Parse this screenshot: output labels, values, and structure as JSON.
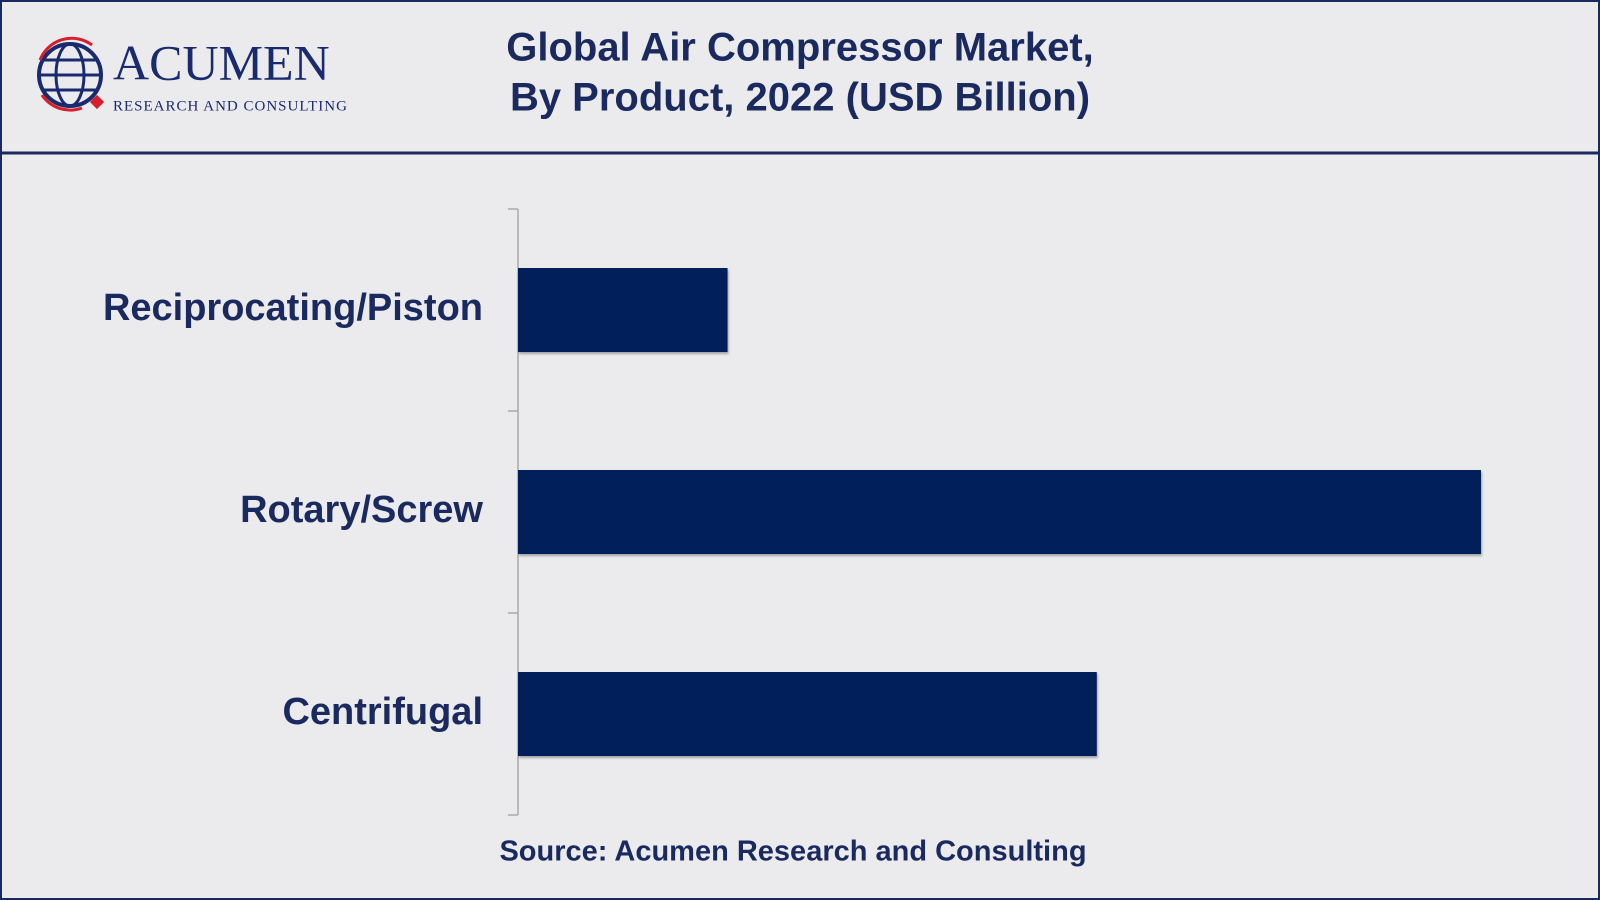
{
  "logo": {
    "name": "ACUMEN",
    "tagline": "RESEARCH AND CONSULTING"
  },
  "chart_data": {
    "type": "bar",
    "orientation": "horizontal",
    "title": [
      "Global Air Compressor Market,",
      "By Product, 2022 (USD Billion)"
    ],
    "categories": [
      "Reciprocating/Piston",
      "Rotary/Screw",
      "Centrifugal"
    ],
    "values": [
      4.2,
      19.3,
      11.6
    ],
    "color": "#001f5b",
    "source": "Source: Acumen Research and Consulting"
  }
}
